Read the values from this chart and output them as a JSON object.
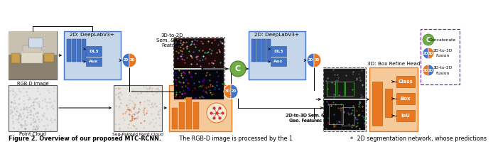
{
  "bg_color": "#ffffff",
  "blue": "#4472c4",
  "light_blue": "#c5d5ea",
  "orange": "#e87722",
  "light_orange": "#f5c99a",
  "green_c": "#70ad47",
  "purple_border": "#7030a0",
  "gray_border": "#808080",
  "caption_bold": "Figure 2. Overview of our proposed MTC-RCNN.",
  "caption_rest": " The RGB-D image is processed by the 1",
  "caption_super": "st",
  "caption_end": " 2D segmentation network, whose predictions"
}
